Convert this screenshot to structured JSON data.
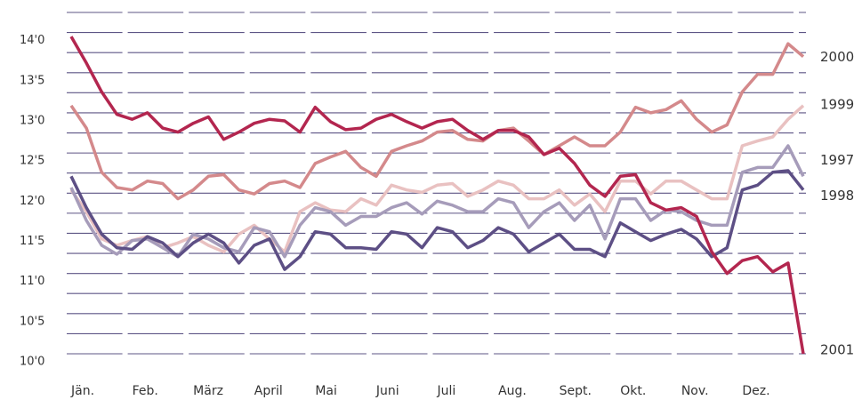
{
  "chart_data": {
    "type": "line",
    "x": [
      0,
      0.25,
      0.5,
      0.75,
      1,
      1.25,
      1.5,
      1.75,
      2,
      2.25,
      2.5,
      2.75,
      3,
      3.25,
      3.5,
      3.75,
      4,
      4.25,
      4.5,
      4.75,
      5,
      5.25,
      5.5,
      5.75,
      6,
      6.25,
      6.5,
      6.75,
      7,
      7.25,
      7.5,
      7.75,
      8,
      8.25,
      8.5,
      8.75,
      9,
      9.25,
      9.5,
      9.75,
      10,
      10.25,
      10.5,
      10.75,
      11,
      11.25,
      11.5,
      11.75,
      12
    ],
    "xlim": [
      0,
      12
    ],
    "xticks": [
      {
        "value": 0,
        "label": "Jän."
      },
      {
        "value": 1,
        "label": "Feb."
      },
      {
        "value": 2,
        "label": "März"
      },
      {
        "value": 3,
        "label": "April"
      },
      {
        "value": 4,
        "label": "Mai"
      },
      {
        "value": 5,
        "label": "Juni"
      },
      {
        "value": 6,
        "label": "Juli"
      },
      {
        "value": 7,
        "label": "Aug."
      },
      {
        "value": 8,
        "label": "Sept."
      },
      {
        "value": 9,
        "label": "Okt."
      },
      {
        "value": 10,
        "label": "Nov."
      },
      {
        "value": 11,
        "label": "Dez."
      }
    ],
    "ylim": [
      10,
      14.25
    ],
    "yticks": [
      {
        "value": 10,
        "label": "10'0"
      },
      {
        "value": 10.5,
        "label": "10'5"
      },
      {
        "value": 11,
        "label": "11'0"
      },
      {
        "value": 11.5,
        "label": "11'5"
      },
      {
        "value": 12,
        "label": "12'0"
      },
      {
        "value": 12.5,
        "label": "12'5"
      },
      {
        "value": 13,
        "label": "13'0"
      },
      {
        "value": 13.5,
        "label": "13'5"
      },
      {
        "value": 14,
        "label": "14'0"
      }
    ],
    "minor_yticks": [
      10.25,
      10.75,
      11.25,
      11.75,
      12.25,
      12.75,
      13.25,
      13.75,
      14.25
    ],
    "grid": true,
    "series": [
      {
        "name": "2000",
        "color": "#d4898b",
        "values": [
          13.09,
          12.81,
          12.26,
          12.07,
          12.04,
          12.15,
          12.12,
          11.93,
          12.04,
          12.21,
          12.23,
          12.04,
          11.99,
          12.12,
          12.15,
          12.07,
          12.37,
          12.45,
          12.52,
          12.32,
          12.21,
          12.52,
          12.59,
          12.65,
          12.76,
          12.78,
          12.67,
          12.65,
          12.78,
          12.81,
          12.65,
          12.48,
          12.59,
          12.7,
          12.59,
          12.59,
          12.76,
          13.07,
          13.0,
          13.04,
          13.15,
          12.92,
          12.76,
          12.85,
          13.26,
          13.48,
          13.48,
          13.86,
          13.7
        ]
      },
      {
        "name": "1999",
        "color": "#e9c1c1",
        "values": [
          12.04,
          11.77,
          11.43,
          11.35,
          11.41,
          11.46,
          11.32,
          11.38,
          11.46,
          11.35,
          11.27,
          11.49,
          11.6,
          11.43,
          11.27,
          11.77,
          11.88,
          11.79,
          11.77,
          11.93,
          11.85,
          12.1,
          12.04,
          12.01,
          12.1,
          12.12,
          11.96,
          12.04,
          12.15,
          12.1,
          11.93,
          11.93,
          12.04,
          11.85,
          11.99,
          11.77,
          12.15,
          12.15,
          11.99,
          12.15,
          12.15,
          12.04,
          11.93,
          11.93,
          12.59,
          12.65,
          12.7,
          12.92,
          13.09
        ]
      },
      {
        "name": "1997",
        "color": "#a69cba",
        "values": [
          12.07,
          11.66,
          11.35,
          11.24,
          11.41,
          11.43,
          11.32,
          11.21,
          11.49,
          11.43,
          11.32,
          11.27,
          11.57,
          11.52,
          11.21,
          11.6,
          11.82,
          11.77,
          11.6,
          11.71,
          11.71,
          11.82,
          11.88,
          11.74,
          11.9,
          11.85,
          11.77,
          11.77,
          11.93,
          11.88,
          11.57,
          11.77,
          11.88,
          11.66,
          11.85,
          11.43,
          11.93,
          11.93,
          11.66,
          11.79,
          11.77,
          11.66,
          11.6,
          11.6,
          12.26,
          12.32,
          12.32,
          12.59,
          12.21
        ]
      },
      {
        "name": "1998",
        "color": "#5d4f85",
        "values": [
          12.21,
          11.82,
          11.49,
          11.32,
          11.3,
          11.46,
          11.38,
          11.21,
          11.38,
          11.49,
          11.38,
          11.13,
          11.35,
          11.43,
          11.05,
          11.21,
          11.52,
          11.49,
          11.32,
          11.32,
          11.3,
          11.52,
          11.49,
          11.32,
          11.57,
          11.52,
          11.32,
          11.41,
          11.57,
          11.49,
          11.27,
          11.38,
          11.49,
          11.3,
          11.3,
          11.21,
          11.63,
          11.52,
          11.41,
          11.49,
          11.55,
          11.43,
          11.21,
          11.32,
          12.04,
          12.1,
          12.26,
          12.28,
          12.04
        ]
      },
      {
        "name": "2001",
        "color": "#b3264f",
        "values": [
          13.95,
          13.62,
          13.26,
          12.98,
          12.92,
          13.0,
          12.81,
          12.76,
          12.87,
          12.95,
          12.67,
          12.76,
          12.87,
          12.92,
          12.9,
          12.76,
          13.07,
          12.89,
          12.79,
          12.81,
          12.92,
          12.98,
          12.89,
          12.81,
          12.89,
          12.92,
          12.78,
          12.67,
          12.78,
          12.78,
          12.7,
          12.48,
          12.56,
          12.37,
          12.1,
          11.96,
          12.21,
          12.23,
          11.88,
          11.79,
          11.82,
          11.71,
          11.27,
          11.0,
          11.16,
          11.21,
          11.02,
          11.13,
          10.0
        ]
      }
    ]
  }
}
